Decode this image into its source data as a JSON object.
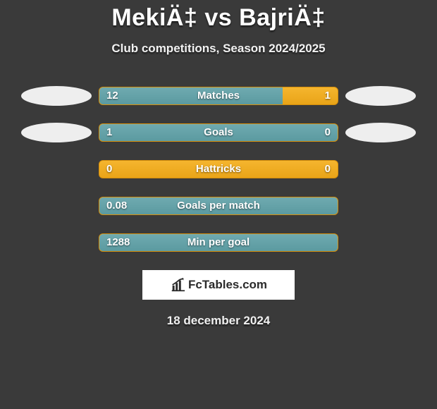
{
  "title": "MekiÄ‡ vs BajriÄ‡",
  "subtitle": "Club competitions, Season 2024/2025",
  "date": "18 december 2024",
  "logo_text": "FcTables.com",
  "oval_color": "#eeeeee",
  "bar_track_color_top": "#f5b52e",
  "bar_track_color_bottom": "#e9a418",
  "bar_left_color_top": "#6faab0",
  "bar_left_color_bottom": "#5b9aa0",
  "background_color": "#3a3a3a",
  "title_fontsize": 34,
  "subtitle_fontsize": 17,
  "bar_label_fontsize": 15,
  "stats": [
    {
      "label": "Matches",
      "left_value": "12",
      "right_value": "1",
      "left_fill_pct": 77,
      "show_left_oval": true,
      "show_right_oval": true
    },
    {
      "label": "Goals",
      "left_value": "1",
      "right_value": "0",
      "left_fill_pct": 100,
      "show_left_oval": true,
      "show_right_oval": true
    },
    {
      "label": "Hattricks",
      "left_value": "0",
      "right_value": "0",
      "left_fill_pct": 0,
      "show_left_oval": false,
      "show_right_oval": false
    },
    {
      "label": "Goals per match",
      "left_value": "0.08",
      "right_value": "",
      "left_fill_pct": 100,
      "show_left_oval": false,
      "show_right_oval": false
    },
    {
      "label": "Min per goal",
      "left_value": "1288",
      "right_value": "",
      "left_fill_pct": 100,
      "show_left_oval": false,
      "show_right_oval": false
    }
  ]
}
